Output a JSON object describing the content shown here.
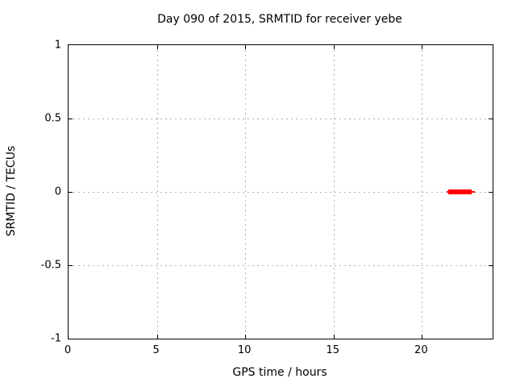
{
  "chart_data": {
    "type": "line",
    "title": "Day 090 of 2015, SRMTID for receiver yebe",
    "xlabel": "GPS time / hours",
    "ylabel": "SRMTID / TECUs",
    "xlim": [
      0,
      24
    ],
    "ylim": [
      -1,
      1
    ],
    "xticks": [
      {
        "value": 0,
        "label": "0"
      },
      {
        "value": 5,
        "label": "5"
      },
      {
        "value": 10,
        "label": "10"
      },
      {
        "value": 15,
        "label": "15"
      },
      {
        "value": 20,
        "label": "20"
      }
    ],
    "yticks": [
      {
        "value": -1,
        "label": "-1"
      },
      {
        "value": -0.5,
        "label": "-0.5"
      },
      {
        "value": 0,
        "label": "0"
      },
      {
        "value": 0.5,
        "label": "0.5"
      },
      {
        "value": 1,
        "label": "1"
      }
    ],
    "grid": true,
    "grid_color": "#b0b0b0",
    "border_color": "#000000",
    "background_color": "#ffffff",
    "legend_position": "none",
    "series": [
      {
        "name": "SRMTID",
        "color": "#ff0000",
        "y": 0,
        "whisker": {
          "x_start": 21.4,
          "x_end": 23.0
        },
        "bar": {
          "x_start": 21.5,
          "x_end": 22.8
        }
      }
    ]
  }
}
